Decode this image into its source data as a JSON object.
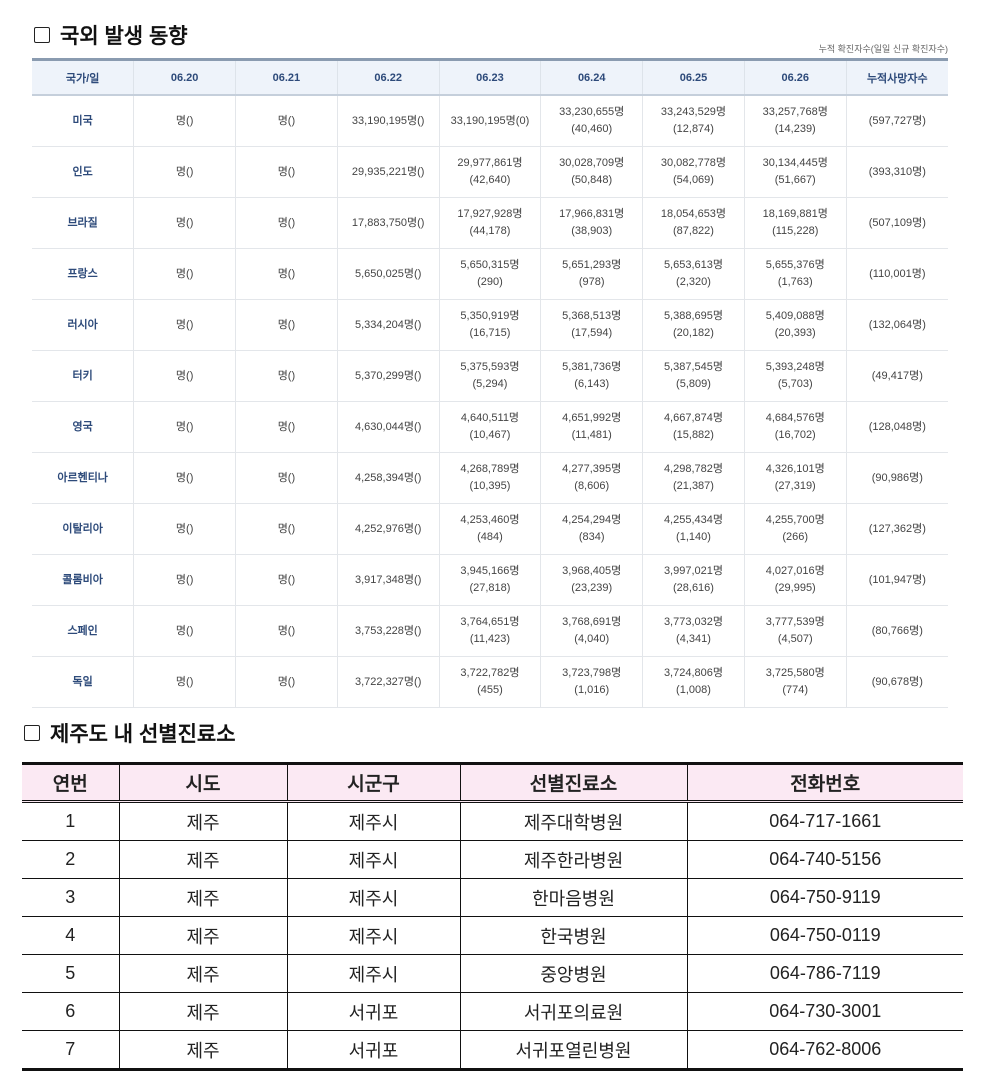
{
  "section1": {
    "title": "국외 발생 동향",
    "note": "누적 확진자수(일일 신규 확진자수)",
    "headers": [
      "국가/일",
      "06.20",
      "06.21",
      "06.22",
      "06.23",
      "06.24",
      "06.25",
      "06.26",
      "누적사망자수"
    ],
    "rows": [
      {
        "country": "미국",
        "cells": [
          {
            "main": "명()",
            "sub": ""
          },
          {
            "main": "명()",
            "sub": ""
          },
          {
            "main": "33,190,195명()",
            "sub": ""
          },
          {
            "main": "33,190,195명(0)",
            "sub": ""
          },
          {
            "main": "33,230,655명",
            "sub": "(40,460)"
          },
          {
            "main": "33,243,529명",
            "sub": "(12,874)"
          },
          {
            "main": "33,257,768명",
            "sub": "(14,239)"
          },
          {
            "main": "(597,727명)",
            "sub": ""
          }
        ]
      },
      {
        "country": "인도",
        "cells": [
          {
            "main": "명()",
            "sub": ""
          },
          {
            "main": "명()",
            "sub": ""
          },
          {
            "main": "29,935,221명()",
            "sub": ""
          },
          {
            "main": "29,977,861명",
            "sub": "(42,640)"
          },
          {
            "main": "30,028,709명",
            "sub": "(50,848)"
          },
          {
            "main": "30,082,778명",
            "sub": "(54,069)"
          },
          {
            "main": "30,134,445명",
            "sub": "(51,667)"
          },
          {
            "main": "(393,310명)",
            "sub": ""
          }
        ]
      },
      {
        "country": "브라질",
        "cells": [
          {
            "main": "명()",
            "sub": ""
          },
          {
            "main": "명()",
            "sub": ""
          },
          {
            "main": "17,883,750명()",
            "sub": ""
          },
          {
            "main": "17,927,928명",
            "sub": "(44,178)"
          },
          {
            "main": "17,966,831명",
            "sub": "(38,903)"
          },
          {
            "main": "18,054,653명",
            "sub": "(87,822)"
          },
          {
            "main": "18,169,881명",
            "sub": "(115,228)"
          },
          {
            "main": "(507,109명)",
            "sub": ""
          }
        ]
      },
      {
        "country": "프랑스",
        "cells": [
          {
            "main": "명()",
            "sub": ""
          },
          {
            "main": "명()",
            "sub": ""
          },
          {
            "main": "5,650,025명()",
            "sub": ""
          },
          {
            "main": "5,650,315명",
            "sub": "(290)"
          },
          {
            "main": "5,651,293명",
            "sub": "(978)"
          },
          {
            "main": "5,653,613명",
            "sub": "(2,320)"
          },
          {
            "main": "5,655,376명",
            "sub": "(1,763)"
          },
          {
            "main": "(110,001명)",
            "sub": ""
          }
        ]
      },
      {
        "country": "러시아",
        "cells": [
          {
            "main": "명()",
            "sub": ""
          },
          {
            "main": "명()",
            "sub": ""
          },
          {
            "main": "5,334,204명()",
            "sub": ""
          },
          {
            "main": "5,350,919명",
            "sub": "(16,715)"
          },
          {
            "main": "5,368,513명",
            "sub": "(17,594)"
          },
          {
            "main": "5,388,695명",
            "sub": "(20,182)"
          },
          {
            "main": "5,409,088명",
            "sub": "(20,393)"
          },
          {
            "main": "(132,064명)",
            "sub": ""
          }
        ]
      },
      {
        "country": "터키",
        "cells": [
          {
            "main": "명()",
            "sub": ""
          },
          {
            "main": "명()",
            "sub": ""
          },
          {
            "main": "5,370,299명()",
            "sub": ""
          },
          {
            "main": "5,375,593명",
            "sub": "(5,294)"
          },
          {
            "main": "5,381,736명",
            "sub": "(6,143)"
          },
          {
            "main": "5,387,545명",
            "sub": "(5,809)"
          },
          {
            "main": "5,393,248명",
            "sub": "(5,703)"
          },
          {
            "main": "(49,417명)",
            "sub": ""
          }
        ]
      },
      {
        "country": "영국",
        "cells": [
          {
            "main": "명()",
            "sub": ""
          },
          {
            "main": "명()",
            "sub": ""
          },
          {
            "main": "4,630,044명()",
            "sub": ""
          },
          {
            "main": "4,640,511명",
            "sub": "(10,467)"
          },
          {
            "main": "4,651,992명",
            "sub": "(11,481)"
          },
          {
            "main": "4,667,874명",
            "sub": "(15,882)"
          },
          {
            "main": "4,684,576명",
            "sub": "(16,702)"
          },
          {
            "main": "(128,048명)",
            "sub": ""
          }
        ]
      },
      {
        "country": "아르헨티나",
        "cells": [
          {
            "main": "명()",
            "sub": ""
          },
          {
            "main": "명()",
            "sub": ""
          },
          {
            "main": "4,258,394명()",
            "sub": ""
          },
          {
            "main": "4,268,789명",
            "sub": "(10,395)"
          },
          {
            "main": "4,277,395명",
            "sub": "(8,606)"
          },
          {
            "main": "4,298,782명",
            "sub": "(21,387)"
          },
          {
            "main": "4,326,101명",
            "sub": "(27,319)"
          },
          {
            "main": "(90,986명)",
            "sub": ""
          }
        ]
      },
      {
        "country": "이탈리아",
        "cells": [
          {
            "main": "명()",
            "sub": ""
          },
          {
            "main": "명()",
            "sub": ""
          },
          {
            "main": "4,252,976명()",
            "sub": ""
          },
          {
            "main": "4,253,460명",
            "sub": "(484)"
          },
          {
            "main": "4,254,294명",
            "sub": "(834)"
          },
          {
            "main": "4,255,434명",
            "sub": "(1,140)"
          },
          {
            "main": "4,255,700명",
            "sub": "(266)"
          },
          {
            "main": "(127,362명)",
            "sub": ""
          }
        ]
      },
      {
        "country": "콜롬비아",
        "cells": [
          {
            "main": "명()",
            "sub": ""
          },
          {
            "main": "명()",
            "sub": ""
          },
          {
            "main": "3,917,348명()",
            "sub": ""
          },
          {
            "main": "3,945,166명",
            "sub": "(27,818)"
          },
          {
            "main": "3,968,405명",
            "sub": "(23,239)"
          },
          {
            "main": "3,997,021명",
            "sub": "(28,616)"
          },
          {
            "main": "4,027,016명",
            "sub": "(29,995)"
          },
          {
            "main": "(101,947명)",
            "sub": ""
          }
        ]
      },
      {
        "country": "스페인",
        "cells": [
          {
            "main": "명()",
            "sub": ""
          },
          {
            "main": "명()",
            "sub": ""
          },
          {
            "main": "3,753,228명()",
            "sub": ""
          },
          {
            "main": "3,764,651명",
            "sub": "(11,423)"
          },
          {
            "main": "3,768,691명",
            "sub": "(4,040)"
          },
          {
            "main": "3,773,032명",
            "sub": "(4,341)"
          },
          {
            "main": "3,777,539명",
            "sub": "(4,507)"
          },
          {
            "main": "(80,766명)",
            "sub": ""
          }
        ]
      },
      {
        "country": "독일",
        "cells": [
          {
            "main": "명()",
            "sub": ""
          },
          {
            "main": "명()",
            "sub": ""
          },
          {
            "main": "3,722,327명()",
            "sub": ""
          },
          {
            "main": "3,722,782명",
            "sub": "(455)"
          },
          {
            "main": "3,723,798명",
            "sub": "(1,016)"
          },
          {
            "main": "3,724,806명",
            "sub": "(1,008)"
          },
          {
            "main": "3,725,580명",
            "sub": "(774)"
          },
          {
            "main": "(90,678명)",
            "sub": ""
          }
        ]
      }
    ]
  },
  "section2": {
    "title": "제주도 내 선별진료소",
    "headers": [
      "연번",
      "시도",
      "시군구",
      "선별진료소",
      "전화번호"
    ],
    "rows": [
      [
        "1",
        "제주",
        "제주시",
        "제주대학병원",
        "064-717-1661"
      ],
      [
        "2",
        "제주",
        "제주시",
        "제주한라병원",
        "064-740-5156"
      ],
      [
        "3",
        "제주",
        "제주시",
        "한마음병원",
        "064-750-9119"
      ],
      [
        "4",
        "제주",
        "제주시",
        "한국병원",
        "064-750-0119"
      ],
      [
        "5",
        "제주",
        "제주시",
        "중앙병원",
        "064-786-7119"
      ],
      [
        "6",
        "제주",
        "서귀포",
        "서귀포의료원",
        "064-730-3001"
      ],
      [
        "7",
        "제주",
        "서귀포",
        "서귀포열린병원",
        "064-762-8006"
      ]
    ]
  }
}
